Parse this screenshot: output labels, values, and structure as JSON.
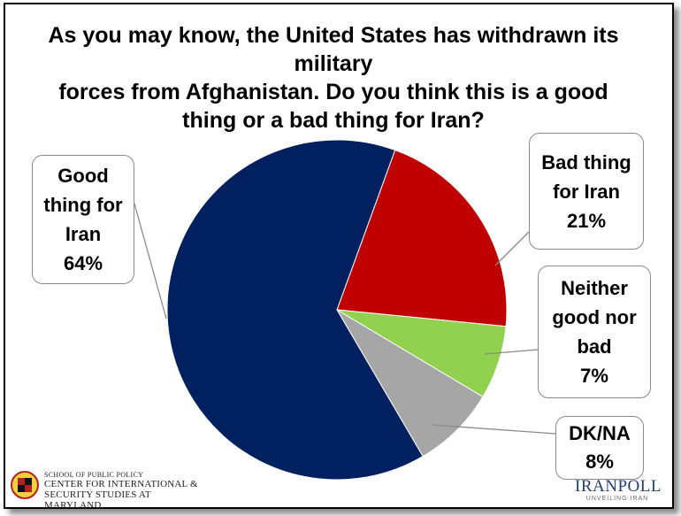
{
  "chart_data": {
    "type": "pie",
    "title": "As you may know, the United States has withdrawn its military forces from Afghanistan.  Do you think this is a good thing or a bad thing for Iran?",
    "title_lines": [
      "As you may know, the United States has withdrawn its military",
      "forces from Afghanistan.  Do you think this is a good",
      "thing or a bad thing for Iran?"
    ],
    "slices": [
      {
        "label": "Bad thing for Iran",
        "value": 21,
        "color": "#c00000",
        "label_lines": [
          "Bad thing",
          "for Iran",
          "21%"
        ]
      },
      {
        "label": "Neither good nor bad",
        "value": 7,
        "color": "#92d050",
        "label_lines": [
          "Neither",
          "good nor",
          "bad",
          "7%"
        ]
      },
      {
        "label": "DK/NA",
        "value": 8,
        "color": "#a6a6a6",
        "label_lines": [
          "DK/NA",
          "8%"
        ]
      },
      {
        "label": "Good thing for Iran",
        "value": 64,
        "color": "#002060",
        "label_lines": [
          "Good",
          "thing for",
          "Iran",
          "64%"
        ]
      }
    ]
  },
  "logos": {
    "left_small": "SCHOOL OF PUBLIC POLICY",
    "left_line1": "CENTER FOR INTERNATIONAL &",
    "left_line2": "SECURITY STUDIES AT MARYLAND",
    "right_brand": "IRANPOLL",
    "right_tag": "UNVEILING IRAN"
  }
}
